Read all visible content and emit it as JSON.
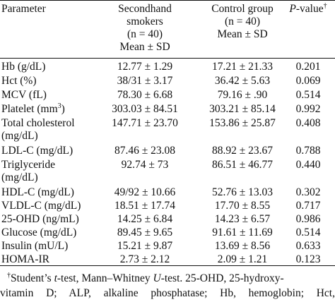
{
  "header": {
    "parameter": "Parameter",
    "group1": [
      "Secondhand",
      "smokers",
      "(n = 40)",
      "Mean ± SD"
    ],
    "group2": [
      "Control group",
      "(n = 40)",
      "Mean ± SD"
    ],
    "pvalue_italic": "P",
    "pvalue_rest": "-value",
    "pvalue_mark": "†"
  },
  "rows": [
    {
      "param": [
        "Hb (g/dL)"
      ],
      "g1": "12.77 ± 1.29",
      "g2": "17.21 ± 21.33",
      "p": "0.201"
    },
    {
      "param": [
        "Hct (%)"
      ],
      "g1": "38/31 ± 3.17",
      "g2": "36.42 ± 5.63",
      "p": "0.069"
    },
    {
      "param": [
        "MCV (fL)"
      ],
      "g1": "78.30 ± 6.68",
      "g2": "79.16 ±  .90",
      "p": "0.514"
    },
    {
      "param": [
        "Platelet (mm",
        "3",
        ")"
      ],
      "g1": "303.03 ± 84.51",
      "g2": "303.21 ± 85.14",
      "p": "0.992"
    },
    {
      "param": [
        "Total cholesterol",
        "(mg/dL)"
      ],
      "g1": "147.71 ± 23.70",
      "g2": "153.86 ± 25.87",
      "p": "0.408"
    },
    {
      "param": [
        "LDL-C (mg/dL)"
      ],
      "g1": "87.46 ± 23.08",
      "g2": "88.92 ± 23.67",
      "p": "0.788"
    },
    {
      "param": [
        "Triglyceride",
        "(mg/dL)"
      ],
      "g1": "92.74 ± 73",
      "g2": "86.51 ± 46.77",
      "p": "0.440"
    },
    {
      "param": [
        "HDL-C (mg/dL)"
      ],
      "g1": "49/92 ± 10.66",
      "g2": "52.76 ± 13.03",
      "p": "0.302"
    },
    {
      "param": [
        "VLDL-C (mg/dL)"
      ],
      "g1": "18.51 ± 17.74",
      "g2": "17.70 ± 8.55",
      "p": "0.717"
    },
    {
      "param": [
        "25-OHD (ng/mL)"
      ],
      "g1": "14.25 ± 6.84",
      "g2": "14.23 ± 6.57",
      "p": "0.986"
    },
    {
      "param": [
        "Glucose (mg/dL)"
      ],
      "g1": "89.45 ± 9.65",
      "g2": "91.61 ± 11.69",
      "p": "0.514"
    },
    {
      "param": [
        "Insulin (mU/L)"
      ],
      "g1": "15.21 ± 9.87",
      "g2": "13.69 ± 8.56",
      "p": "0.633"
    },
    {
      "param": [
        "HOMA-IR"
      ],
      "g1": "2.73 ± 2.12",
      "g2": "2.09 ± 1.21",
      "p": "0.123"
    }
  ],
  "footnote": {
    "mark": "†",
    "l1a": "Student’s ",
    "l1b": "t",
    "l1c": "-test, Mann–Whitney ",
    "l1d": "U",
    "l1e": "-test. 25-OHD, 25-hydroxy-",
    "l2": "vitamin D; ALP, alkaline phosphatase; Hb, hemoglobin; Hct,"
  }
}
